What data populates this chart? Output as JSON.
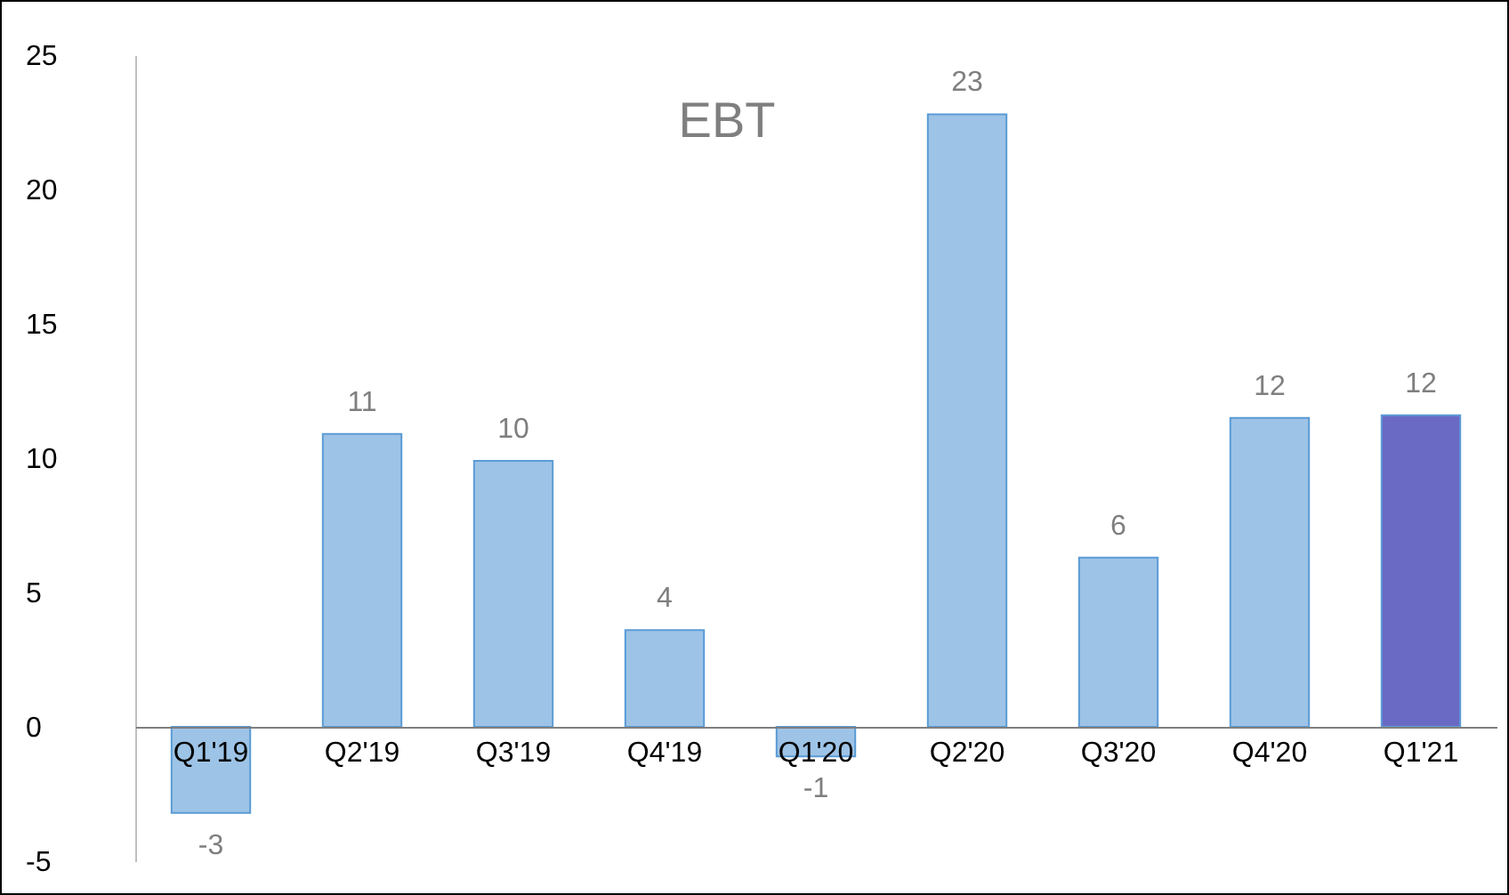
{
  "chart_data": {
    "type": "bar",
    "title": "EBT",
    "categories": [
      "Q1'19",
      "Q2'19",
      "Q3'19",
      "Q4'19",
      "Q1'20",
      "Q2'20",
      "Q3'20",
      "Q4'20",
      "Q1'21"
    ],
    "values": [
      -3.2,
      10.9,
      9.9,
      3.6,
      -1.1,
      22.8,
      6.3,
      11.5,
      11.6
    ],
    "value_labels": [
      "-3",
      "11",
      "10",
      "4",
      "-1",
      "23",
      "6",
      "12",
      "12"
    ],
    "colors": [
      "#9dc3e6",
      "#9dc3e6",
      "#9dc3e6",
      "#9dc3e6",
      "#9dc3e6",
      "#9dc3e6",
      "#9dc3e6",
      "#9dc3e6",
      "#6a6ac4"
    ],
    "ylim": [
      -5,
      25
    ],
    "yticks": [
      -5,
      0,
      5,
      10,
      15,
      20,
      25
    ],
    "grid": false
  }
}
